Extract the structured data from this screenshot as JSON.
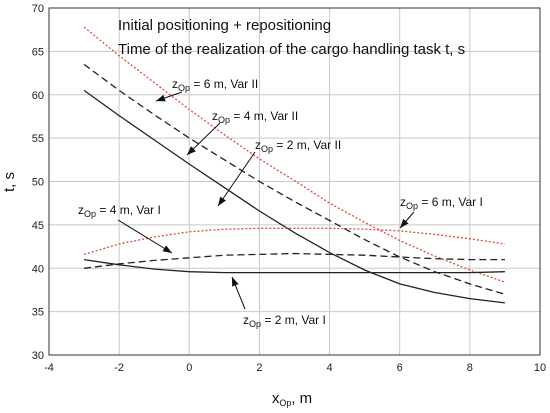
{
  "chart_data": {
    "type": "line",
    "title": "Initial positioning + repositioning",
    "subtitle": "Time of the realization of the cargo handling task t, s",
    "xlabel": {
      "main": "x",
      "sub": "Op",
      "rest": ", m"
    },
    "ylabel": "t, s",
    "xlim": [
      -4,
      10
    ],
    "ylim": [
      30,
      70
    ],
    "xticks": [
      -4,
      -2,
      0,
      2,
      4,
      6,
      8,
      10
    ],
    "yticks": [
      30,
      35,
      40,
      45,
      50,
      55,
      60,
      65,
      70
    ],
    "grid": true,
    "legend": "none",
    "series": [
      {
        "style": "dotted",
        "color": "#e04a3a",
        "label": {
          "main": "z",
          "sub": "Op",
          "rest": " = 6 m, Var II"
        },
        "x": [
          -3,
          -2,
          -1,
          0,
          1,
          2,
          3,
          4,
          5,
          6,
          7,
          8,
          9
        ],
        "y": [
          67.8,
          64.5,
          61.4,
          58.3,
          55.4,
          52.6,
          50.1,
          47.5,
          45.3,
          43.2,
          41.4,
          39.8,
          38.4
        ]
      },
      {
        "style": "dashed",
        "color": "#222222",
        "label": {
          "main": "z",
          "sub": "Op",
          "rest": " = 4 m, Var II"
        },
        "x": [
          -3,
          -2,
          -1,
          0,
          1,
          2,
          3,
          4,
          5,
          6,
          7,
          8,
          9
        ],
        "y": [
          63.5,
          60.5,
          57.7,
          55.0,
          52.5,
          50.0,
          47.7,
          45.5,
          43.3,
          41.3,
          39.6,
          38.2,
          37.0
        ]
      },
      {
        "style": "solid",
        "color": "#222222",
        "label": {
          "main": "z",
          "sub": "Op",
          "rest": " = 2 m, Var II"
        },
        "x": [
          -3,
          -2,
          -1,
          0,
          1,
          2,
          3,
          4,
          5,
          6,
          7,
          8,
          9
        ],
        "y": [
          60.5,
          57.6,
          54.8,
          52.0,
          49.3,
          46.6,
          44.1,
          41.8,
          39.8,
          38.2,
          37.2,
          36.5,
          36.0
        ]
      },
      {
        "style": "dotted",
        "color": "#e04a3a",
        "label": {
          "main": "z",
          "sub": "Op",
          "rest": " = 6 m, Var I"
        },
        "x": [
          -3,
          -2,
          -1,
          0,
          1,
          2,
          3,
          4,
          5,
          6,
          7,
          8,
          9
        ],
        "y": [
          41.6,
          42.8,
          43.6,
          44.2,
          44.5,
          44.6,
          44.6,
          44.6,
          44.5,
          44.3,
          43.9,
          43.4,
          42.8
        ]
      },
      {
        "style": "dashed",
        "color": "#222222",
        "label": {
          "main": "z",
          "sub": "Op",
          "rest": " = 4 m, Var I"
        },
        "x": [
          -3,
          -2,
          -1,
          0,
          1,
          2,
          3,
          4,
          5,
          6,
          7,
          8,
          9
        ],
        "y": [
          40.0,
          40.5,
          40.9,
          41.2,
          41.5,
          41.6,
          41.7,
          41.6,
          41.5,
          41.3,
          41.1,
          41.0,
          41.0
        ]
      },
      {
        "style": "solid",
        "color": "#222222",
        "label": {
          "main": "z",
          "sub": "Op",
          "rest": " = 2 m, Var I"
        },
        "x": [
          -3,
          -2,
          -1,
          0,
          1,
          2,
          3,
          4,
          5,
          6,
          7,
          8,
          9
        ],
        "y": [
          41.0,
          40.4,
          39.9,
          39.6,
          39.5,
          39.5,
          39.5,
          39.5,
          39.5,
          39.5,
          39.5,
          39.5,
          39.6
        ]
      }
    ]
  }
}
